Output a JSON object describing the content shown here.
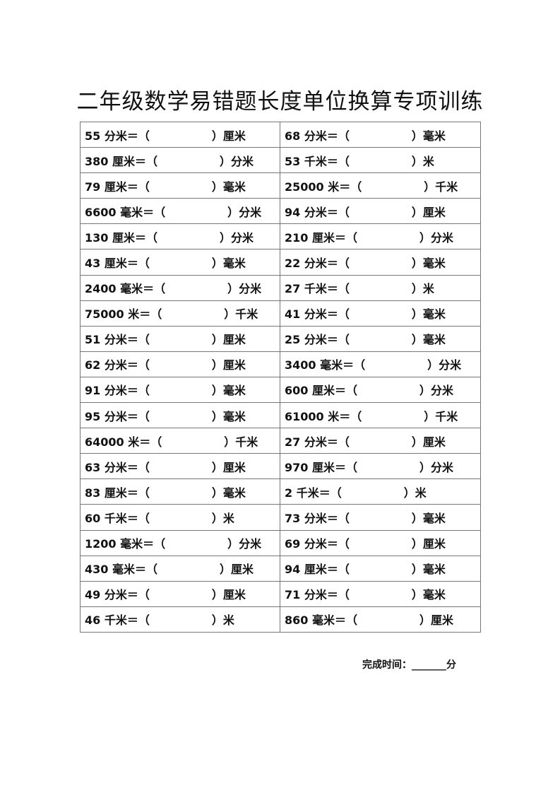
{
  "title": "二年级数学易错题长度单位换算专项训练",
  "rows": [
    [
      {
        "q": "55 分米＝（",
        "u": "）厘米"
      },
      {
        "q": "68 分米＝（",
        "u": "）毫米"
      }
    ],
    [
      {
        "q": "380 厘米＝（",
        "u": "）分米"
      },
      {
        "q": "53 千米＝（",
        "u": "）米"
      }
    ],
    [
      {
        "q": "79 厘米＝（",
        "u": "）毫米"
      },
      {
        "q": "25000 米＝（",
        "u": "）千米"
      }
    ],
    [
      {
        "q": "6600 毫米＝（",
        "u": "）分米"
      },
      {
        "q": "94 分米＝（",
        "u": "）厘米"
      }
    ],
    [
      {
        "q": "130 厘米＝（",
        "u": "）分米"
      },
      {
        "q": "210 厘米＝（",
        "u": "）分米"
      }
    ],
    [
      {
        "q": "43 厘米＝（",
        "u": "）毫米"
      },
      {
        "q": "22 分米＝（",
        "u": "）毫米"
      }
    ],
    [
      {
        "q": "2400 毫米＝（",
        "u": "）分米"
      },
      {
        "q": "27 千米＝（",
        "u": "）米"
      }
    ],
    [
      {
        "q": "75000 米＝（",
        "u": "）千米"
      },
      {
        "q": "41 分米＝（",
        "u": "）毫米"
      }
    ],
    [
      {
        "q": "51 分米＝（",
        "u": "）厘米"
      },
      {
        "q": "25 分米＝（",
        "u": "）毫米"
      }
    ],
    [
      {
        "q": "62 分米＝（",
        "u": "）厘米"
      },
      {
        "q": "3400 毫米＝（",
        "u": "）分米"
      }
    ],
    [
      {
        "q": "91 分米＝（",
        "u": "）毫米"
      },
      {
        "q": "600 厘米＝（",
        "u": "）分米"
      }
    ],
    [
      {
        "q": "95 分米＝（",
        "u": "）毫米"
      },
      {
        "q": "61000 米＝（",
        "u": "）千米"
      }
    ],
    [
      {
        "q": "64000 米＝（",
        "u": "）千米"
      },
      {
        "q": "27 分米＝（",
        "u": "）厘米"
      }
    ],
    [
      {
        "q": "63 分米＝（",
        "u": "）厘米"
      },
      {
        "q": "970 厘米＝（",
        "u": "）分米"
      }
    ],
    [
      {
        "q": "83 厘米＝（",
        "u": "）毫米"
      },
      {
        "q": "2 千米＝（",
        "u": "）米"
      }
    ],
    [
      {
        "q": "60 千米＝（",
        "u": "）米"
      },
      {
        "q": "73 分米＝（",
        "u": "）毫米"
      }
    ],
    [
      {
        "q": "1200 毫米＝（",
        "u": "）分米"
      },
      {
        "q": "69 分米＝（",
        "u": "）厘米"
      }
    ],
    [
      {
        "q": "430 毫米＝（",
        "u": "）厘米"
      },
      {
        "q": "94 厘米＝（",
        "u": "）毫米"
      }
    ],
    [
      {
        "q": "49 分米＝（",
        "u": "）厘米"
      },
      {
        "q": "71 分米＝（",
        "u": "）毫米"
      }
    ],
    [
      {
        "q": "46 千米＝（",
        "u": "）米"
      },
      {
        "q": "860 毫米＝（",
        "u": "）厘米"
      }
    ]
  ],
  "footer": "完成时间：_______分"
}
